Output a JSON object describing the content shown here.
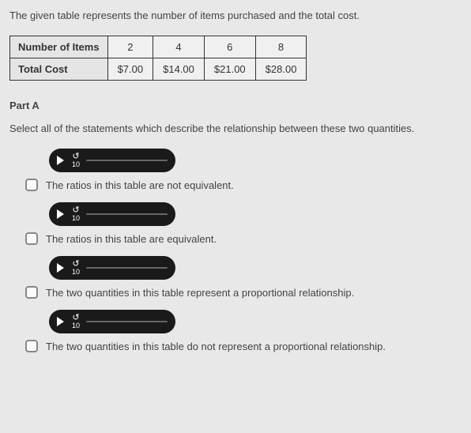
{
  "intro": "The given table represents the number of items purchased and the total cost.",
  "table": {
    "row1_header": "Number of Items",
    "row1": [
      "2",
      "4",
      "6",
      "8"
    ],
    "row2_header": "Total Cost",
    "row2": [
      "$7.00",
      "$14.00",
      "$21.00",
      "$28.00"
    ]
  },
  "part_label": "Part A",
  "prompt": "Select all of the statements which describe the relationship between these two quantities.",
  "rewind_label": "10",
  "options": [
    "The ratios in this table are not equivalent.",
    "The ratios in this table are equivalent.",
    "The two quantities in this table represent a proportional relationship.",
    "The two quantities in this table do not represent a proportional relationship."
  ]
}
